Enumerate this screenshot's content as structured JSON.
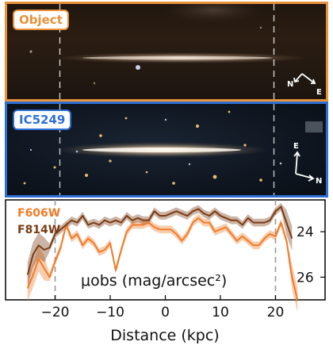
{
  "panels": {
    "object": {
      "label": "Object",
      "color": "#e8923a",
      "compass": {
        "n": "N",
        "e": "E"
      }
    },
    "ic5249": {
      "label": "IC5249",
      "color": "#2e6fd6",
      "compass": {
        "n": "N",
        "e": "E"
      }
    }
  },
  "chart_data": {
    "type": "line",
    "xlabel": "Distance (kpc)",
    "ylabel": "μobs (mag/arcsec²)",
    "xlim": [
      -29,
      29
    ],
    "ylim": [
      27.0,
      22.6
    ],
    "y_inverted": true,
    "x_ticks": [
      -20,
      -10,
      0,
      10,
      20
    ],
    "x_tick_labels": [
      "−20",
      "−10",
      "0",
      "10",
      "20"
    ],
    "y_ticks": [
      24,
      26
    ],
    "y_tick_labels": [
      "24",
      "26"
    ],
    "y_axis_side": "right",
    "reference_lines_x": [
      -20,
      20
    ],
    "legend_position": "top-left",
    "series": [
      {
        "name": "F606W",
        "color": "#f07c2a",
        "x": [
          -25,
          -24,
          -23,
          -22,
          -21,
          -20,
          -19,
          -18,
          -17,
          -16,
          -15,
          -14,
          -13,
          -12,
          -11,
          -10,
          -9,
          -8,
          -7,
          -6,
          -5,
          -4,
          -3,
          -2,
          -1,
          0,
          1,
          2,
          3,
          4,
          5,
          6,
          7,
          8,
          9,
          10,
          11,
          12,
          13,
          14,
          15,
          16,
          17,
          18,
          19,
          20,
          21,
          22,
          23,
          24
        ],
        "y": [
          26.5,
          25.9,
          25.2,
          25.6,
          26.0,
          25.3,
          24.7,
          23.7,
          24.3,
          24.1,
          24.6,
          24.3,
          24.5,
          24.9,
          24.8,
          24.5,
          25.7,
          24.8,
          24.0,
          23.7,
          23.7,
          23.7,
          23.6,
          23.8,
          23.9,
          23.9,
          23.9,
          24.1,
          24.4,
          24.1,
          23.6,
          23.4,
          23.6,
          23.6,
          24.0,
          23.9,
          23.8,
          24.1,
          24.4,
          24.2,
          24.4,
          24.6,
          24.6,
          24.3,
          24.1,
          24.2,
          23.6,
          24.4,
          26.0,
          27.0
        ],
        "uncertainty_band": true
      },
      {
        "name": "F814W",
        "color": "#7a3a12",
        "x": [
          -25,
          -24,
          -23,
          -22,
          -21,
          -20,
          -19,
          -18,
          -17,
          -16,
          -15,
          -14,
          -13,
          -12,
          -11,
          -10,
          -9,
          -8,
          -7,
          -6,
          -5,
          -4,
          -3,
          -2,
          -1,
          0,
          1,
          2,
          3,
          4,
          5,
          6,
          7,
          8,
          9,
          10,
          11,
          12,
          13,
          14,
          15,
          16,
          17,
          18,
          19,
          20,
          21,
          22,
          23
        ],
        "y": [
          25.9,
          25.0,
          24.6,
          24.8,
          24.7,
          24.1,
          23.9,
          23.7,
          23.5,
          23.6,
          23.3,
          23.7,
          23.6,
          23.7,
          23.5,
          23.6,
          23.5,
          23.6,
          23.3,
          23.5,
          23.4,
          23.5,
          23.5,
          23.1,
          23.3,
          23.3,
          23.2,
          23.1,
          23.2,
          23.3,
          23.1,
          23.0,
          23.2,
          23.3,
          23.1,
          23.3,
          23.4,
          23.5,
          23.5,
          23.7,
          23.4,
          23.6,
          23.6,
          23.6,
          23.5,
          23.1,
          22.9,
          23.6,
          24.3
        ],
        "uncertainty_band": true
      }
    ]
  }
}
